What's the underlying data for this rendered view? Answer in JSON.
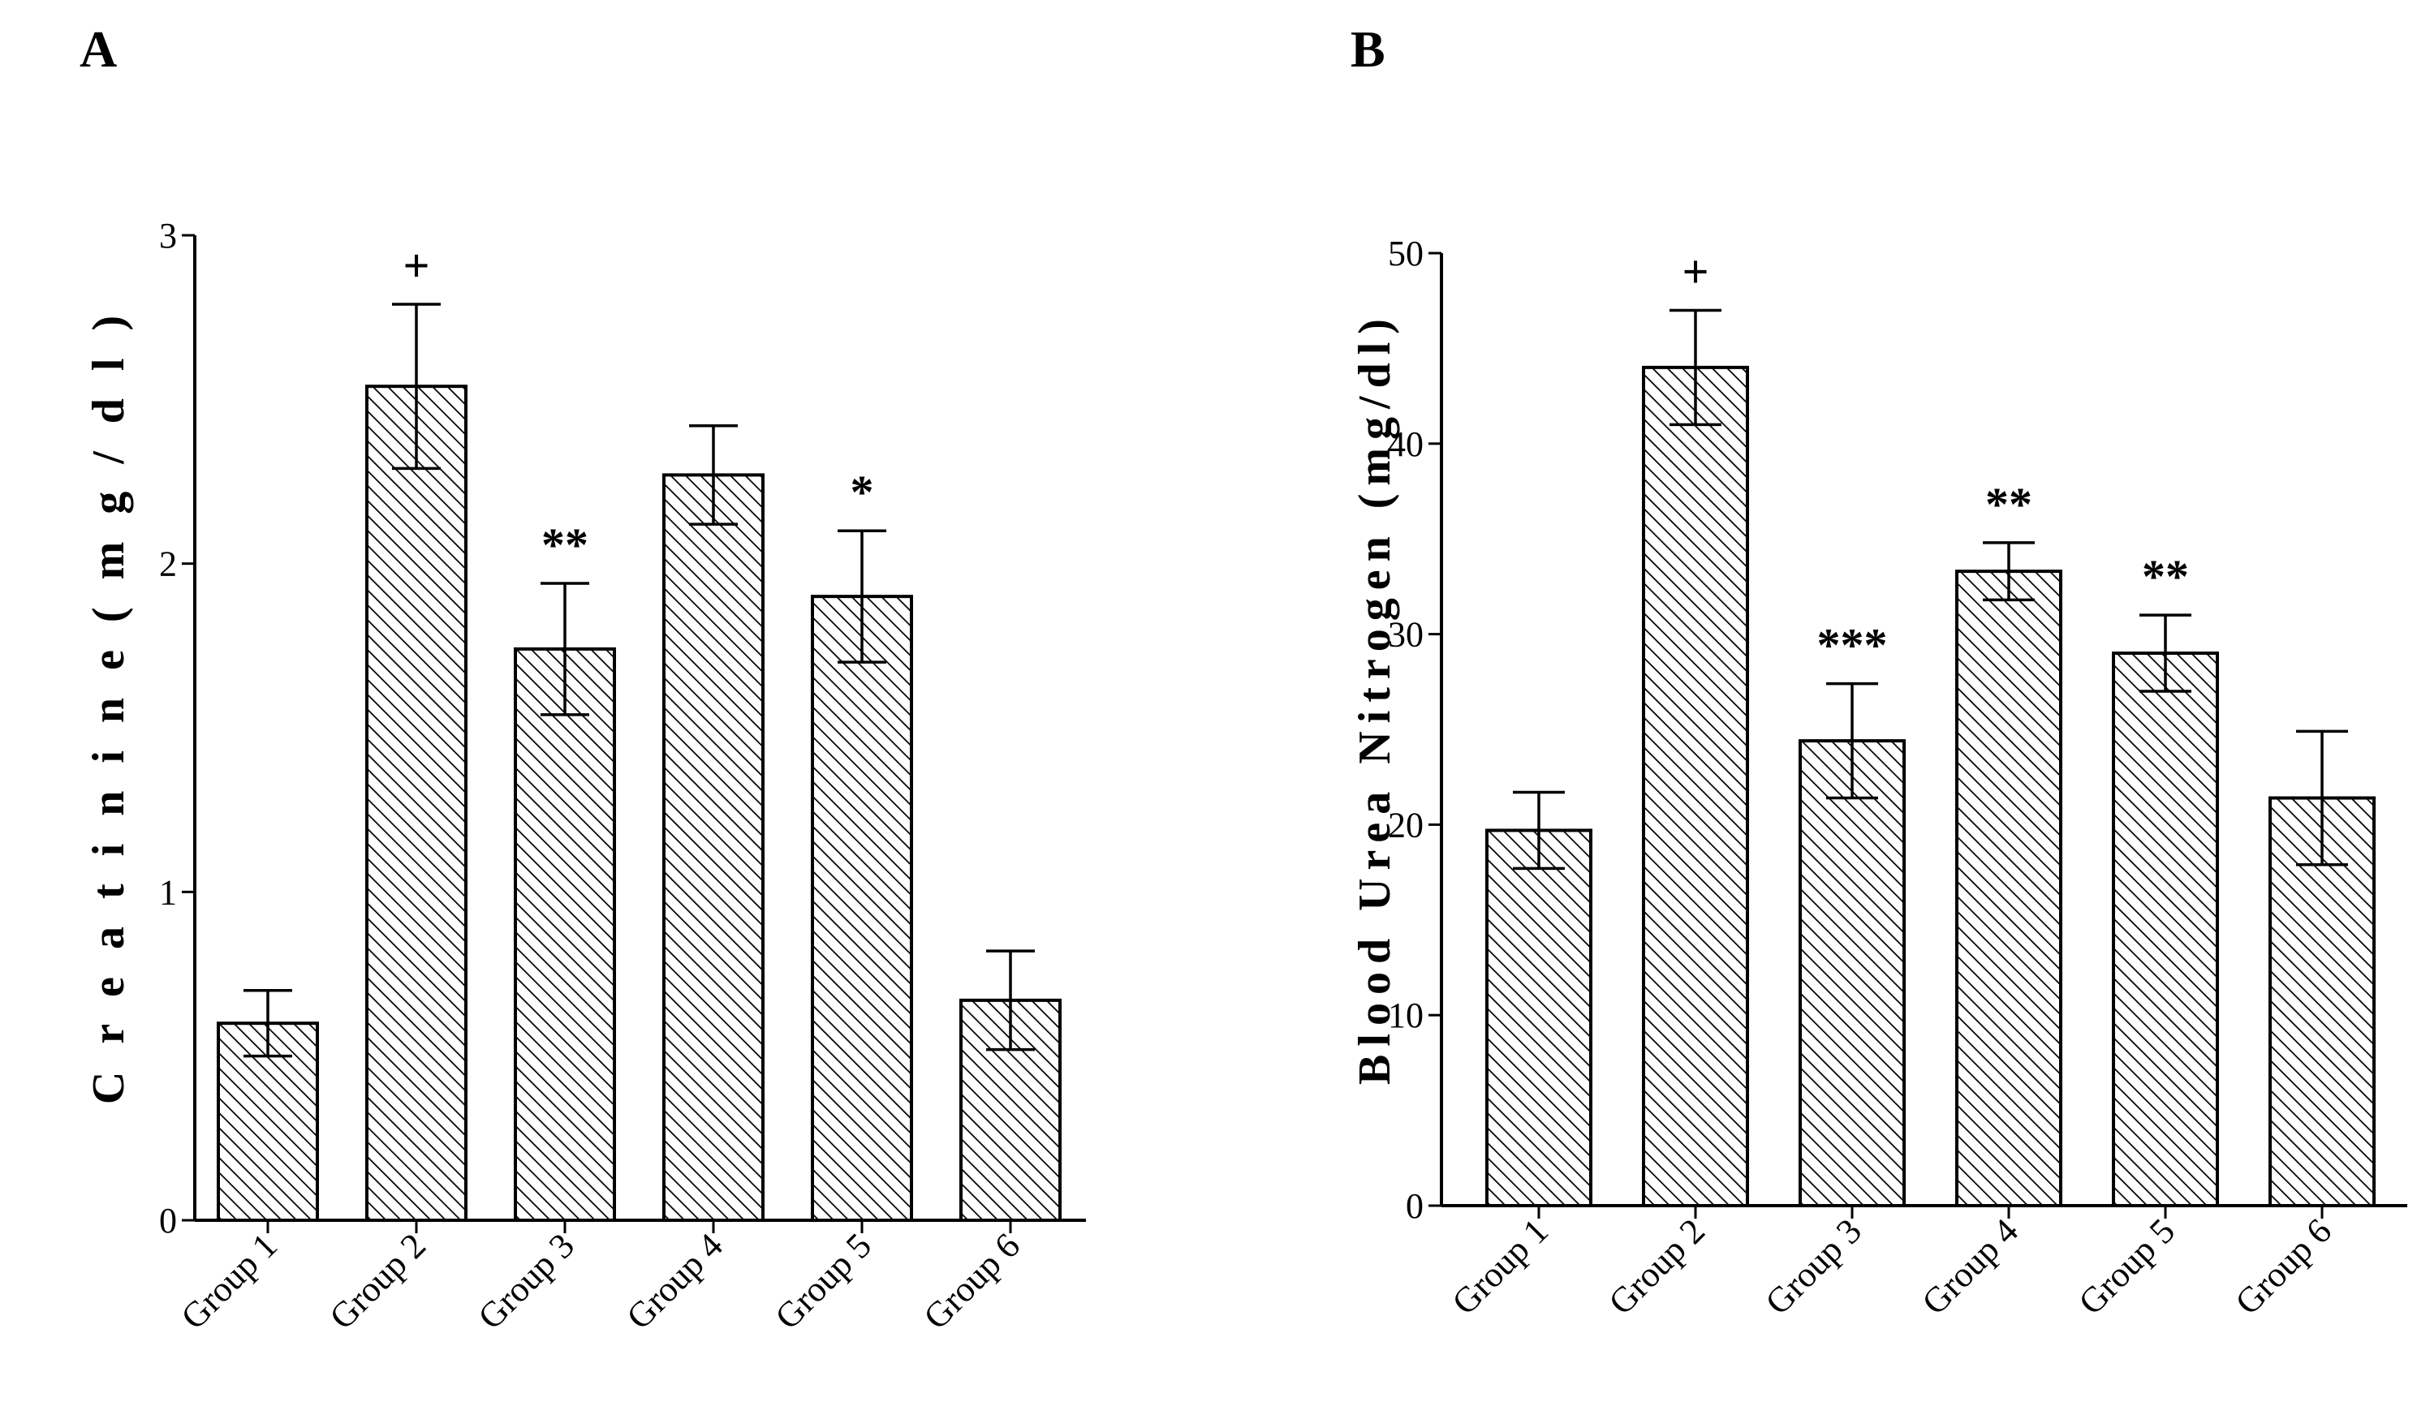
{
  "chart_data": [
    {
      "type": "bar",
      "panel": "A",
      "title": "",
      "xlabel": "",
      "ylabel": "C r e a t i n i n e   ( m g / d l )",
      "ylim": [
        0,
        3
      ],
      "yticks": [
        0,
        1,
        2,
        3
      ],
      "categories": [
        "Group 1",
        "Group 2",
        "Group 3",
        "Group 4",
        "Group 5",
        "Group 6"
      ],
      "values": [
        0.6,
        2.54,
        1.74,
        2.27,
        1.9,
        0.67
      ],
      "errors": [
        0.1,
        0.25,
        0.2,
        0.15,
        0.2,
        0.15
      ],
      "annotations": [
        "",
        "+",
        "**",
        "",
        "*",
        ""
      ],
      "bar_fill": "hatched",
      "grid": false
    },
    {
      "type": "bar",
      "panel": "B",
      "title": "",
      "xlabel": "",
      "ylabel": "Blood Urea Nitrogen (mg/dl)",
      "ylim": [
        0,
        50
      ],
      "yticks": [
        0,
        10,
        20,
        30,
        40,
        50
      ],
      "categories": [
        "Group 1",
        "Group 2",
        "Group 3",
        "Group 4",
        "Group 5",
        "Group 6"
      ],
      "values": [
        19.7,
        44.0,
        24.4,
        33.3,
        29.0,
        21.4
      ],
      "errors": [
        2.0,
        3.0,
        3.0,
        1.5,
        2.0,
        3.5
      ],
      "annotations": [
        "",
        "+",
        "***",
        "**",
        "**",
        ""
      ],
      "bar_fill": "hatched",
      "grid": false
    }
  ]
}
